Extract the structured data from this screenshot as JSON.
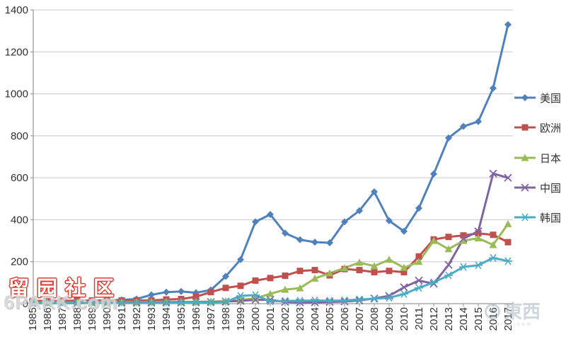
{
  "chart_data": {
    "type": "line",
    "title": "",
    "xlabel": "",
    "ylabel": "",
    "x": [
      1985,
      1986,
      1987,
      1988,
      1989,
      1990,
      1991,
      1992,
      1993,
      1994,
      1995,
      1996,
      1997,
      1998,
      1999,
      2000,
      2001,
      2002,
      2003,
      2004,
      2005,
      2006,
      2007,
      2008,
      2009,
      2010,
      2011,
      2012,
      2013,
      2014,
      2015,
      2016,
      2017
    ],
    "ylim": [
      0,
      1400
    ],
    "ytick_step": 200,
    "yticks": [
      0,
      200,
      400,
      600,
      800,
      1000,
      1200,
      1400
    ],
    "grid": true,
    "legend_position": "right",
    "series": [
      {
        "key": "usa",
        "name": "美国",
        "color": "#4F81BD",
        "marker": "diamond",
        "values": [
          10,
          12,
          13,
          14,
          15,
          16,
          18,
          22,
          42,
          55,
          58,
          52,
          65,
          130,
          210,
          390,
          425,
          336,
          305,
          293,
          290,
          390,
          443,
          533,
          395,
          345,
          455,
          618,
          790,
          845,
          868,
          1027,
          1330
        ]
      },
      {
        "key": "europe",
        "name": "欧洲",
        "color": "#C0504D",
        "marker": "square",
        "values": [
          13,
          13,
          14,
          14,
          15,
          15,
          15,
          16,
          15,
          20,
          22,
          33,
          55,
          75,
          85,
          110,
          122,
          133,
          156,
          160,
          135,
          165,
          160,
          150,
          156,
          150,
          225,
          306,
          318,
          325,
          335,
          328,
          293
        ]
      },
      {
        "key": "japan",
        "name": "日本",
        "color": "#9BBB59",
        "marker": "triangle",
        "values": [
          5,
          5,
          6,
          6,
          6,
          7,
          7,
          8,
          8,
          9,
          9,
          9,
          10,
          12,
          18,
          25,
          47,
          67,
          74,
          120,
          145,
          170,
          196,
          179,
          210,
          171,
          200,
          300,
          260,
          300,
          312,
          280,
          380
        ]
      },
      {
        "key": "china",
        "name": "中国",
        "color": "#8064A2",
        "marker": "x",
        "values": [
          3,
          3,
          3,
          3,
          4,
          4,
          4,
          5,
          5,
          6,
          6,
          7,
          8,
          10,
          13,
          18,
          18,
          8,
          6,
          6,
          8,
          10,
          15,
          25,
          37,
          78,
          110,
          95,
          185,
          310,
          345,
          620,
          600
        ]
      },
      {
        "key": "korea",
        "name": "韩国",
        "color": "#4BACC6",
        "marker": "star",
        "values": [
          2,
          2,
          2,
          2,
          3,
          3,
          3,
          3,
          4,
          4,
          5,
          5,
          6,
          8,
          37,
          41,
          11,
          13,
          14,
          15,
          14,
          15,
          20,
          23,
          28,
          46,
          75,
          101,
          135,
          175,
          183,
          218,
          203
        ]
      }
    ]
  },
  "watermarks": {
    "site_cn": "留园社区",
    "site_en": "6PARK.com",
    "logo_right_text": "東西",
    "logo_right_sub": "zhidx.com"
  },
  "style": {
    "grid_color": "#c9c9c9",
    "axis_color": "#9b9b9b",
    "tick_label_color": "#303030"
  }
}
